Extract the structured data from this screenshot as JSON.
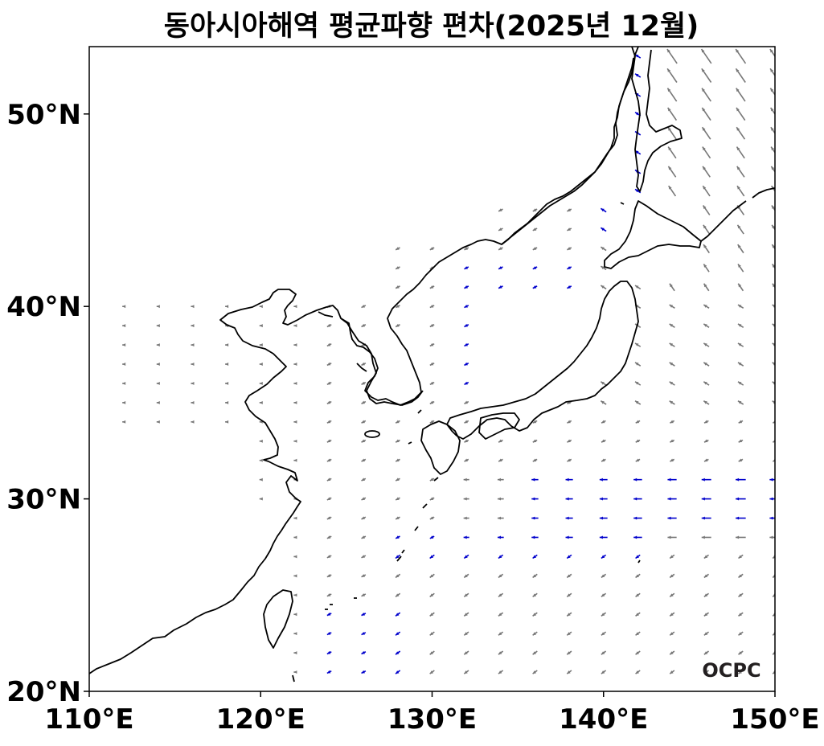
{
  "title": "동아시아해역 평균파향 편차(2025년 12월)",
  "logo": "OCPC",
  "map": {
    "lon_range": [
      110,
      150
    ],
    "lat_range": [
      20,
      53.5
    ],
    "lon_ticks": [
      110,
      120,
      130,
      140,
      150
    ],
    "lat_ticks": [
      20,
      30,
      40,
      50
    ],
    "lon_tick_labels": [
      "110°E",
      "120°E",
      "130°E",
      "140°E",
      "150°E"
    ],
    "lat_tick_labels": [
      "20°N",
      "30°N",
      "40°N",
      "50°N"
    ]
  },
  "colors": {
    "coastline": "#000000",
    "arrow_normal": "#777777",
    "arrow_highlight": "#0000cc",
    "background": "#ffffff"
  }
}
